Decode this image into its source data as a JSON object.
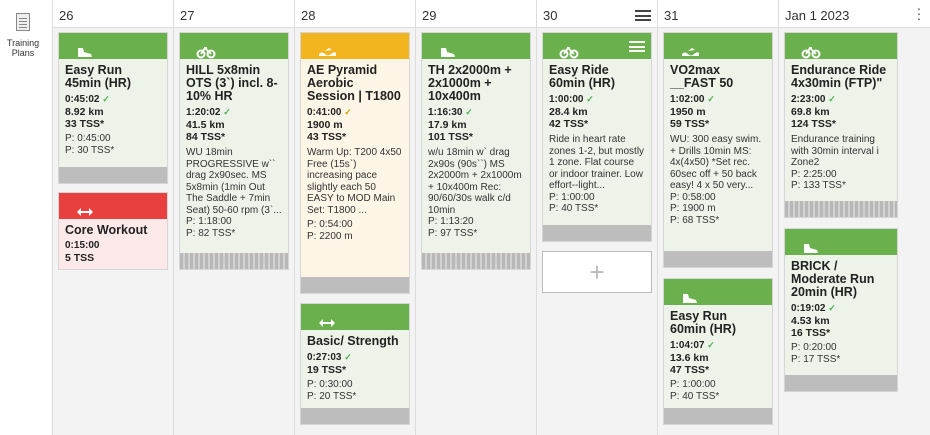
{
  "sidebar": {
    "label": "Training Plans",
    "icon": "training-plans-icon"
  },
  "days": [
    {
      "header": "26",
      "workouts": [
        {
          "title": "Easy Run 45min (HR)",
          "sport": "run",
          "color": "#6ab04c",
          "duration": "0:45:02",
          "check": "green",
          "distance": "8.92 km",
          "tss": "33 TSS*",
          "description": "",
          "planned": [
            "P: 0:45:00",
            "P: 30 TSS*"
          ]
        },
        {
          "title": "Core Workout",
          "sport": "strength",
          "color": "#e8403f",
          "duration": "0:15:00",
          "check": "",
          "distance": "",
          "tss": "5 TSS",
          "description": "",
          "planned": []
        }
      ]
    },
    {
      "header": "27",
      "workouts": [
        {
          "title": "HILL 5x8min OTS (3`) incl. 8-10% HR",
          "sport": "bike",
          "color": "#6ab04c",
          "duration": "1:20:02",
          "check": "green",
          "distance": "41.5 km",
          "tss": "84 TSS*",
          "description": "WU 18min PROGRESSIVE w`` drag 2x90sec. MS 5x8min (1min Out The Saddle + 7min Seat) 50-60 rpm (3`...",
          "planned": [
            "P: 1:18:00",
            "P: 82 TSS*"
          ]
        }
      ]
    },
    {
      "header": "28",
      "workouts": [
        {
          "title": "AE Pyramid Aerobic Session | T1800",
          "sport": "swim",
          "color": "#f2b51f",
          "duration": "0:41:00",
          "check": "yellow",
          "distance": "1900 m",
          "tss": "43 TSS*",
          "description": "Warm Up: T200 4x50 Free (15s`) increasing pace slightly each 50 EASY to MOD  Main Set: T1800 ...",
          "planned": [
            "P: 0:54:00",
            "P: 2200 m"
          ]
        },
        {
          "title": "Basic/ Strength",
          "sport": "strength",
          "color": "#6ab04c",
          "duration": "0:27:03",
          "check": "green",
          "distance": "",
          "tss": "19 TSS*",
          "description": "",
          "planned": [
            "P: 0:30:00",
            "P: 20 TSS*"
          ]
        }
      ]
    },
    {
      "header": "29",
      "workouts": [
        {
          "title": "TH 2x2000m + 2x1000m + 10x400m",
          "sport": "run",
          "color": "#6ab04c",
          "duration": "1:16:30",
          "check": "green",
          "distance": "17.9 km",
          "tss": "101 TSS*",
          "description": "w/u 18min w` drag 2x90s (90s``) MS 2x2000m + 2x1000m + 10x400m Rec: 90/60/30s walk c/d 10min",
          "planned": [
            "P: 1:13:20",
            "P: 97 TSS*"
          ]
        }
      ]
    },
    {
      "header": "30",
      "workouts": [
        {
          "title": "Easy Ride 60min (HR)",
          "sport": "bike",
          "color": "#6ab04c",
          "duration": "1:00:00",
          "check": "green",
          "distance": "28.4 km",
          "tss": "42 TSS*",
          "description": "Ride in heart rate zones 1-2, but mostly 1 zone. Flat course or indoor trainer. Low effort--light...",
          "planned": [
            "P: 1:00:00",
            "P: 40 TSS*"
          ]
        }
      ]
    },
    {
      "header": "31",
      "workouts": [
        {
          "title": "VO2max __FAST 50",
          "sport": "swim",
          "color": "#6ab04c",
          "duration": "1:02:00",
          "check": "green",
          "distance": "1950 m",
          "tss": "59 TSS*",
          "description": "WU: 300 easy swim. + Drills 10min MS: 4x(4x50) *Set rec. 60sec off + 50 back easy! 4 x 50 very...",
          "planned": [
            "P: 0:58:00",
            "P: 1900 m",
            "P: 68 TSS*"
          ]
        },
        {
          "title": "Easy Run 60min (HR)",
          "sport": "run",
          "color": "#6ab04c",
          "duration": "1:04:07",
          "check": "green",
          "distance": "13.6 km",
          "tss": "47 TSS*",
          "description": "",
          "planned": [
            "P: 1:00:00",
            "P: 40 TSS*"
          ]
        }
      ]
    },
    {
      "header": "Jan 1 2023",
      "workouts": [
        {
          "title": "Endurance Ride 4x30min (FTP)\"",
          "sport": "bike",
          "color": "#6ab04c",
          "duration": "2:23:00",
          "check": "green",
          "distance": "69.8 km",
          "tss": "124 TSS*",
          "description": "Endurance training with 30min interval i Zone2",
          "planned": [
            "P: 2:25:00",
            "P: 133 TSS*"
          ]
        },
        {
          "title": "BRICK / Moderate Run 20min (HR)",
          "sport": "run",
          "color": "#6ab04c",
          "duration": "0:19:02",
          "check": "green",
          "distance": "4.53 km",
          "tss": "16 TSS*",
          "description": "",
          "planned": [
            "P: 0:20:00",
            "P: 17 TSS*"
          ]
        }
      ]
    }
  ],
  "add_workout_symbol": "+",
  "check_symbol": "✓"
}
